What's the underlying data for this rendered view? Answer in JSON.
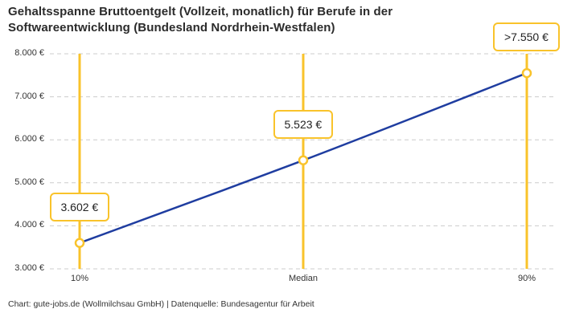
{
  "title": "Gehaltsspanne Bruttoentgelt (Vollzeit, monatlich) für Berufe in der Softwareentwicklung (Bundesland Nordrhein-Westfalen)",
  "footer": "Chart: gute-jobs.de (Wollmilchsau GmbH) | Datenquelle: Bundesagentur für Arbeit",
  "chart_data": {
    "type": "line",
    "title": "Gehaltsspanne Bruttoentgelt (Vollzeit, monatlich) für Berufe in der Softwareentwicklung (Bundesland Nordrhein-Westfalen)",
    "categories": [
      "10%",
      "Median",
      "90%"
    ],
    "values": [
      3602,
      5523,
      7550
    ],
    "point_labels": [
      "3.602 €",
      "5.523 €",
      ">7.550 €"
    ],
    "xlabel": "",
    "ylabel": "",
    "ylim": [
      3000,
      8000
    ],
    "yticks": [
      3000,
      4000,
      5000,
      6000,
      7000,
      8000
    ],
    "ytick_labels": [
      "3.000 €",
      "4.000 €",
      "5.000 €",
      "6.000 €",
      "7.000 €",
      "8.000 €"
    ],
    "grid": "horizontal-dashed",
    "legend": "none",
    "annotations": "each percentile marked with vertical highlight line, open circle marker and framed value label",
    "colors": {
      "line": "#1f3da0",
      "highlight": "#f9c32b",
      "grid": "#cccccc",
      "tick_text": "#333333",
      "title_text": "#2b2b2b",
      "marker_fill": "#ffffff",
      "background": "#ffffff"
    }
  }
}
